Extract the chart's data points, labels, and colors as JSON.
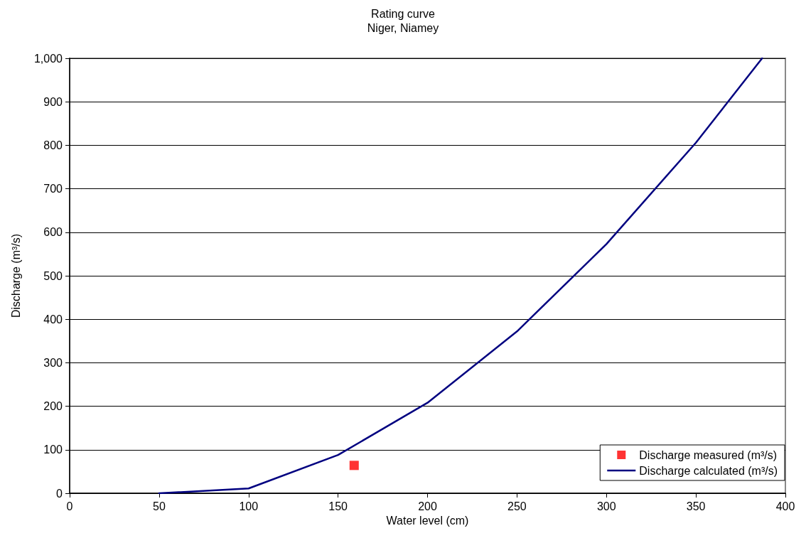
{
  "chart_data": {
    "type": "line",
    "title": "Rating curve",
    "subtitle": "Niger, Niamey",
    "xlabel": "Water level (cm)",
    "ylabel": "Discharge (m³/s)",
    "xlim": [
      0,
      400
    ],
    "xticks": [
      0,
      50,
      100,
      150,
      200,
      250,
      300,
      350,
      400
    ],
    "ylim": [
      0,
      1000
    ],
    "yticks": [
      0,
      100,
      200,
      300,
      400,
      500,
      600,
      700,
      800,
      900,
      {
        "value": 1000,
        "label": "1,000"
      }
    ],
    "grid": "y",
    "legend": "bottom right",
    "series": [
      {
        "name": "Discharge measured (m³/s)",
        "type": "scatter",
        "marker": "square",
        "color": "#ff0000",
        "x": [
          159
        ],
        "values": [
          64
        ]
      },
      {
        "name": "Discharge calculated (m³/s)",
        "marker": "none",
        "line_style": "solid",
        "color": "#000080",
        "x": [
          50,
          100,
          150,
          200,
          250,
          300,
          350,
          387
        ],
        "values": [
          0,
          11,
          88,
          208,
          372,
          573,
          806,
          1000
        ]
      }
    ]
  }
}
